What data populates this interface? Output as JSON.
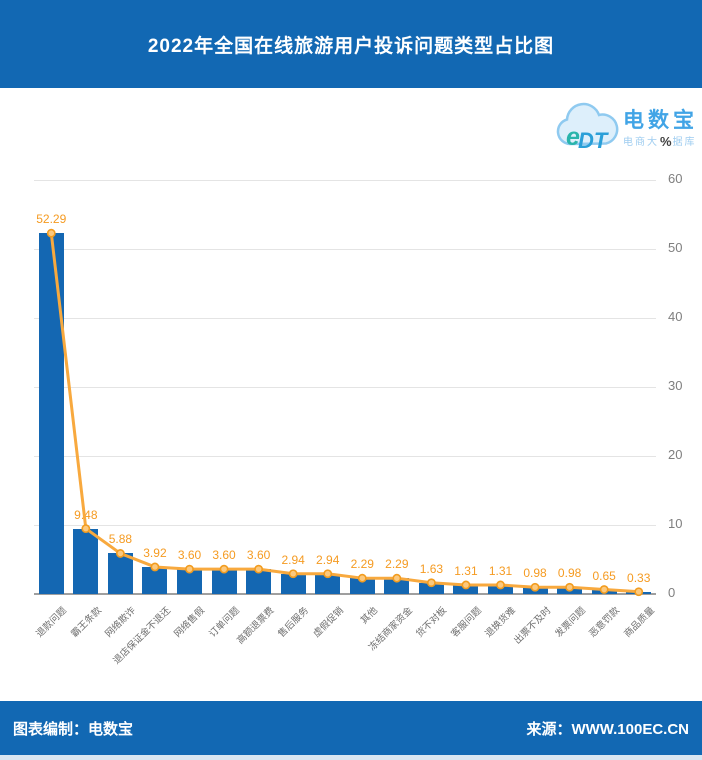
{
  "header": {
    "title": "2022年全国在线旅游用户投诉问题类型占比图"
  },
  "logo": {
    "monogram": "eDT",
    "brand": "电数宝",
    "slogan_prefix": "电商大",
    "slogan_percent": "%",
    "slogan_suffix": "据库"
  },
  "footer": {
    "left": "图表编制：电数宝",
    "right": "来源：WWW.100EC.CN"
  },
  "colors": {
    "brand_blue": "#1268b3",
    "bar_blue": "#1467b2",
    "line_orange": "#F8A93E",
    "marker_fill": "#FCC97E",
    "marker_stroke": "#F29C1F",
    "data_label_orange": "#F59B22",
    "grid_gray": "#e4e4e4",
    "axis_gray": "#9f9f9f",
    "tick_gray": "#7f7f7f",
    "bottom_strip": "#d9e6f2"
  },
  "chart_data": {
    "type": "bar",
    "line_overlay": true,
    "title": "2022年全国在线旅游用户投诉问题类型占比图",
    "categories": [
      "退款问题",
      "霸王条款",
      "网络欺诈",
      "退店保证金不退还",
      "网络售假",
      "订单问题",
      "高额退票费",
      "售后服务",
      "虚假促销",
      "其他",
      "冻结商家资金",
      "货不对板",
      "客服问题",
      "退换货难",
      "出票不及时",
      "发票问题",
      "恶意罚款",
      "商品质量"
    ],
    "values": [
      52.29,
      9.48,
      5.88,
      3.92,
      3.6,
      3.6,
      3.6,
      2.94,
      2.94,
      2.29,
      2.29,
      1.63,
      1.31,
      1.31,
      0.98,
      0.98,
      0.65,
      0.33
    ],
    "unit": "%",
    "ylim": [
      0,
      60
    ],
    "yticks": [
      0,
      10,
      20,
      30,
      40,
      50,
      60
    ],
    "axis_side": "right",
    "grid": true,
    "legend": "none"
  }
}
